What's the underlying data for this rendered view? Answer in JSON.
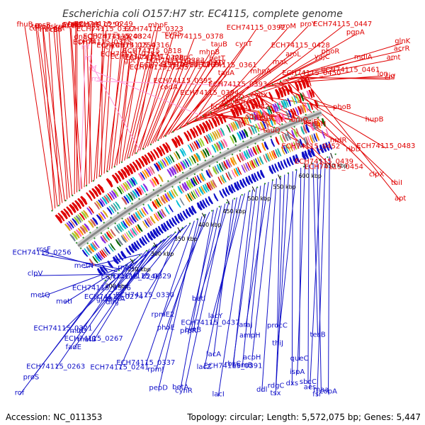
{
  "title": "Escherichia coli O157:H7 str. EC4115, complete genome",
  "colors": {
    "forward": "#e00000",
    "reverse": "#1010c8",
    "rna": "#ff99dd",
    "backbone": "#888888"
  },
  "footer": {
    "accession": "Accession: NC_011353",
    "summary": "Topology: circular; Length: 5,572,075 bp; Genes: 5,447"
  },
  "ticks": [
    "200 kbp",
    "250 kbp",
    "300 kbp",
    "350 kbp",
    "400 kbp",
    "450 kbp",
    "500 kbp",
    "550 kbp",
    "600 kbp",
    "650 kbp"
  ],
  "forward_labels": [
    "fhuB",
    "fhuA",
    "tsf",
    "mrcB",
    "cdaR",
    "rpsB",
    "skp",
    "hrpB",
    "dgt",
    "fabZ",
    "tilS",
    "pyrH",
    "accA",
    "cutF",
    "dnaQ",
    "ECH74115_0250",
    "proB",
    "ECH74115_0327",
    "ECH74115_0249",
    "crl",
    "ECH74115_0325",
    "ECH74115_0248",
    "frsA",
    "ECH74115_0324",
    "ECH74115_0254",
    "ECH74115_0317",
    "ECH74115_0253",
    "gpt",
    "ECH74115_0316",
    "ECH74115_0323",
    "ECH74115_0318",
    "ECH74115_0328",
    "ECH74115_0385",
    "mhpF",
    "ECH74115_0384",
    "cynS",
    "ECH74115_0383",
    "codA",
    "mhpC",
    "ECH74115_0363",
    "ECH74115_0395",
    "ECH74115_0378",
    "mhpB",
    "ECH74115_0377",
    "prpD",
    "tauB",
    "betT",
    "ECH74115_0394",
    "tauA",
    "phoA",
    "ECH74115_0361",
    "ECH74115_0393",
    "cynT",
    "mhpD",
    "ECH74115_0382",
    "adrA",
    "ECH74115_0392",
    "mhpA",
    "smbA",
    "cynX",
    "mhpE",
    "tauC",
    "tauD",
    "mak",
    "aroM",
    "ECH74115_0428",
    "aroL",
    "brnQ",
    "psiF",
    "ECH74115_0452",
    "ECH74115_0450",
    "proY",
    "ribH",
    "phoR",
    "yajC",
    "ECH74115_0439",
    "phoB",
    "nrdR",
    "ECH74115_0454",
    "ribD",
    "ECH74115_0447",
    "pgpA",
    "ECH74115_0461",
    "mdlA",
    "hupB",
    "lon",
    "ECH74115_0483",
    "clpX",
    "amt",
    "thiI",
    "tig",
    "cof",
    "glnK",
    "acrR",
    "apt"
  ],
  "rna_labels": [
    "rrf",
    "rrl",
    "rrf",
    "rrs"
  ],
  "reverse_labels": [
    "rof",
    "proS",
    "clpV",
    "rcsF",
    "ECH74115_0256",
    "metQ",
    "ECH74115_0263",
    "metI",
    "fadE",
    "ECH74115_0321",
    "metN",
    "mltD",
    "ECH74115_0267",
    "matB",
    "gloB",
    "dinJ",
    "ECH74115_0326",
    "matA",
    "rnhA",
    "ECH74115_0274",
    "ECH74115_0241",
    "ECH74115_0329",
    "ECH74115_0246",
    "ECH74115_0330",
    "ECH74115_0337",
    "pepD",
    "rpmJ",
    "phoE",
    "rpmE2",
    "betA",
    "prpR",
    "betB",
    "cynR",
    "betI",
    "lacA",
    "lacY",
    "lacZ",
    "ECH74115_0437",
    "lacI",
    "ECH74115_0391",
    "rbcC",
    "hemB",
    "ampH",
    "araJ",
    "acpH",
    "ddl",
    "procC",
    "tsx",
    "rdgC",
    "dxs",
    "thiJ",
    "queC",
    "ispA",
    "sbcC",
    "tesB",
    "maa",
    "aes",
    "fsr",
    "copA"
  ]
}
